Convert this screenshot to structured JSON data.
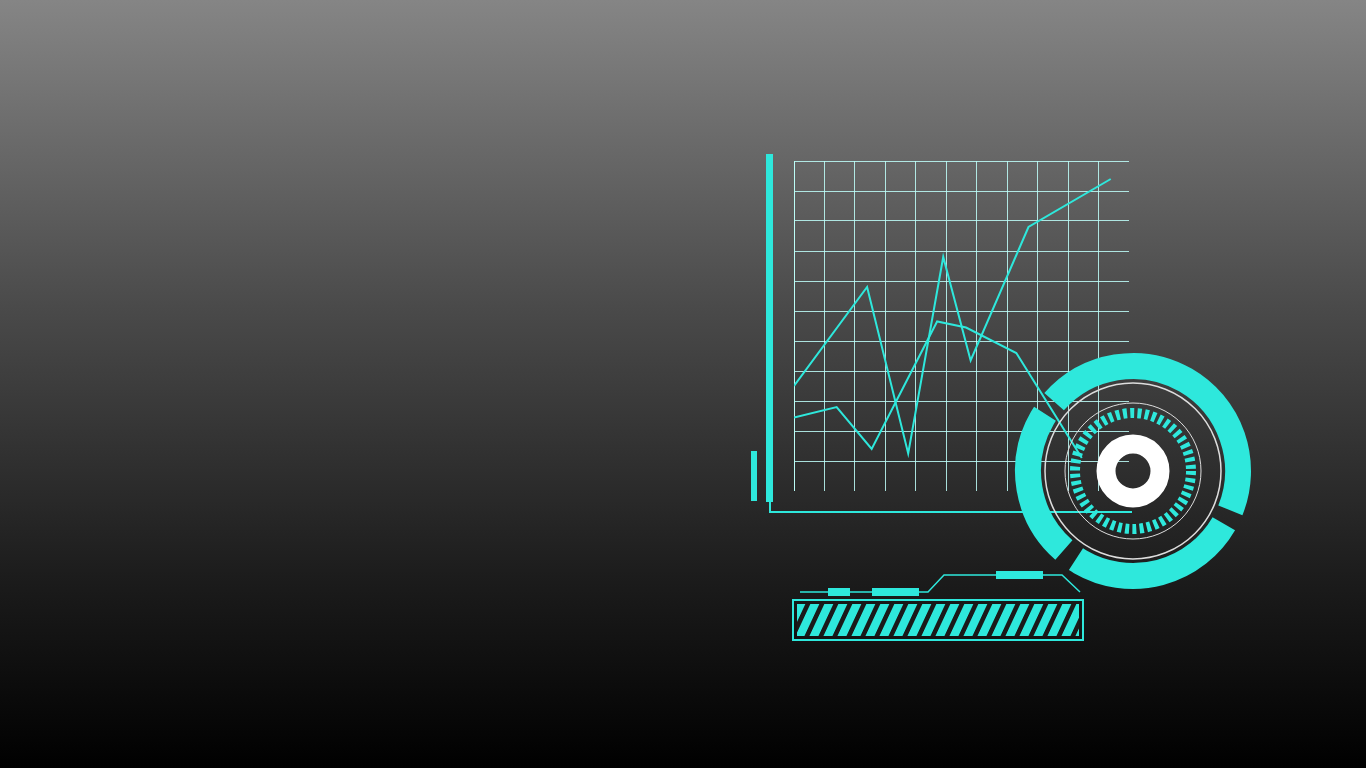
{
  "chart_data": {
    "type": "line",
    "series": [
      {
        "color": "#2ee8dc",
        "x": [
          0,
          2.4,
          3.75,
          4.9,
          5.8,
          7.7,
          10.4
        ],
        "values": [
          3.5,
          6.8,
          1.25,
          7.8,
          4.35,
          8.8,
          10.4
        ]
      },
      {
        "color": "#2ee8dc",
        "x": [
          0,
          1.4,
          2.55,
          4.7,
          5.65,
          7.3,
          9.45
        ],
        "values": [
          2.45,
          2.8,
          1.4,
          5.65,
          5.45,
          4.6,
          1.1
        ]
      }
    ],
    "xlim": [
      0,
      11
    ],
    "xticks": [
      0,
      1,
      2,
      3,
      4,
      5,
      6,
      7,
      8,
      9,
      10,
      11
    ],
    "ylim": [
      0,
      11
    ],
    "yticks": [
      0,
      1,
      2,
      3,
      4,
      5,
      6,
      7,
      8,
      9,
      10,
      11
    ],
    "grid": true,
    "tick_labels": false
  }
}
